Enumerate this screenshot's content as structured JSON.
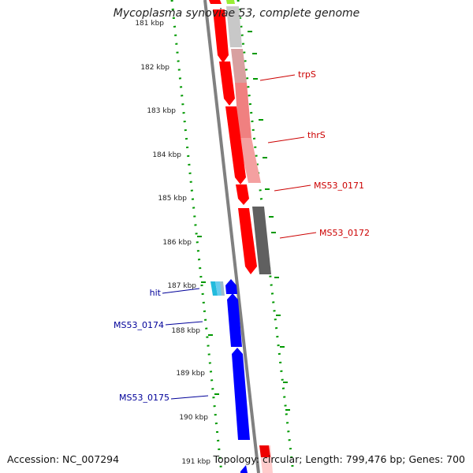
{
  "title": "Mycoplasma synoviae 53, complete genome",
  "accession": "Accession: NC_007294",
  "summary": "Topology: circular; Length: 799,476 bp; Genes: 700",
  "colors": {
    "forward_strand": "#ff0000",
    "reverse_strand": "#0000ff",
    "backbone": "#808080",
    "gc_ticks": "#008800",
    "forward_label": "#cc0000",
    "reverse_label": "#000099",
    "cog_light_red": "#f08080",
    "cog_grey": "#606060",
    "cog_light_grey": "#c8c8c8",
    "cog_cyan": "#22bbdd",
    "cog_green": "#99ee33"
  },
  "ruler": {
    "unit": "kbp",
    "ticks": [
      "181 kbp",
      "182 kbp",
      "183 kbp",
      "184 kbp",
      "185 kbp",
      "186 kbp",
      "187 kbp",
      "188 kbp",
      "189 kbp",
      "190 kbp",
      "191 kbp"
    ]
  },
  "forward_labels": [
    "trpS",
    "thrS",
    "MS53_0171",
    "MS53_0172"
  ],
  "reverse_labels": [
    "hit",
    "MS53_0174",
    "MS53_0175"
  ]
}
